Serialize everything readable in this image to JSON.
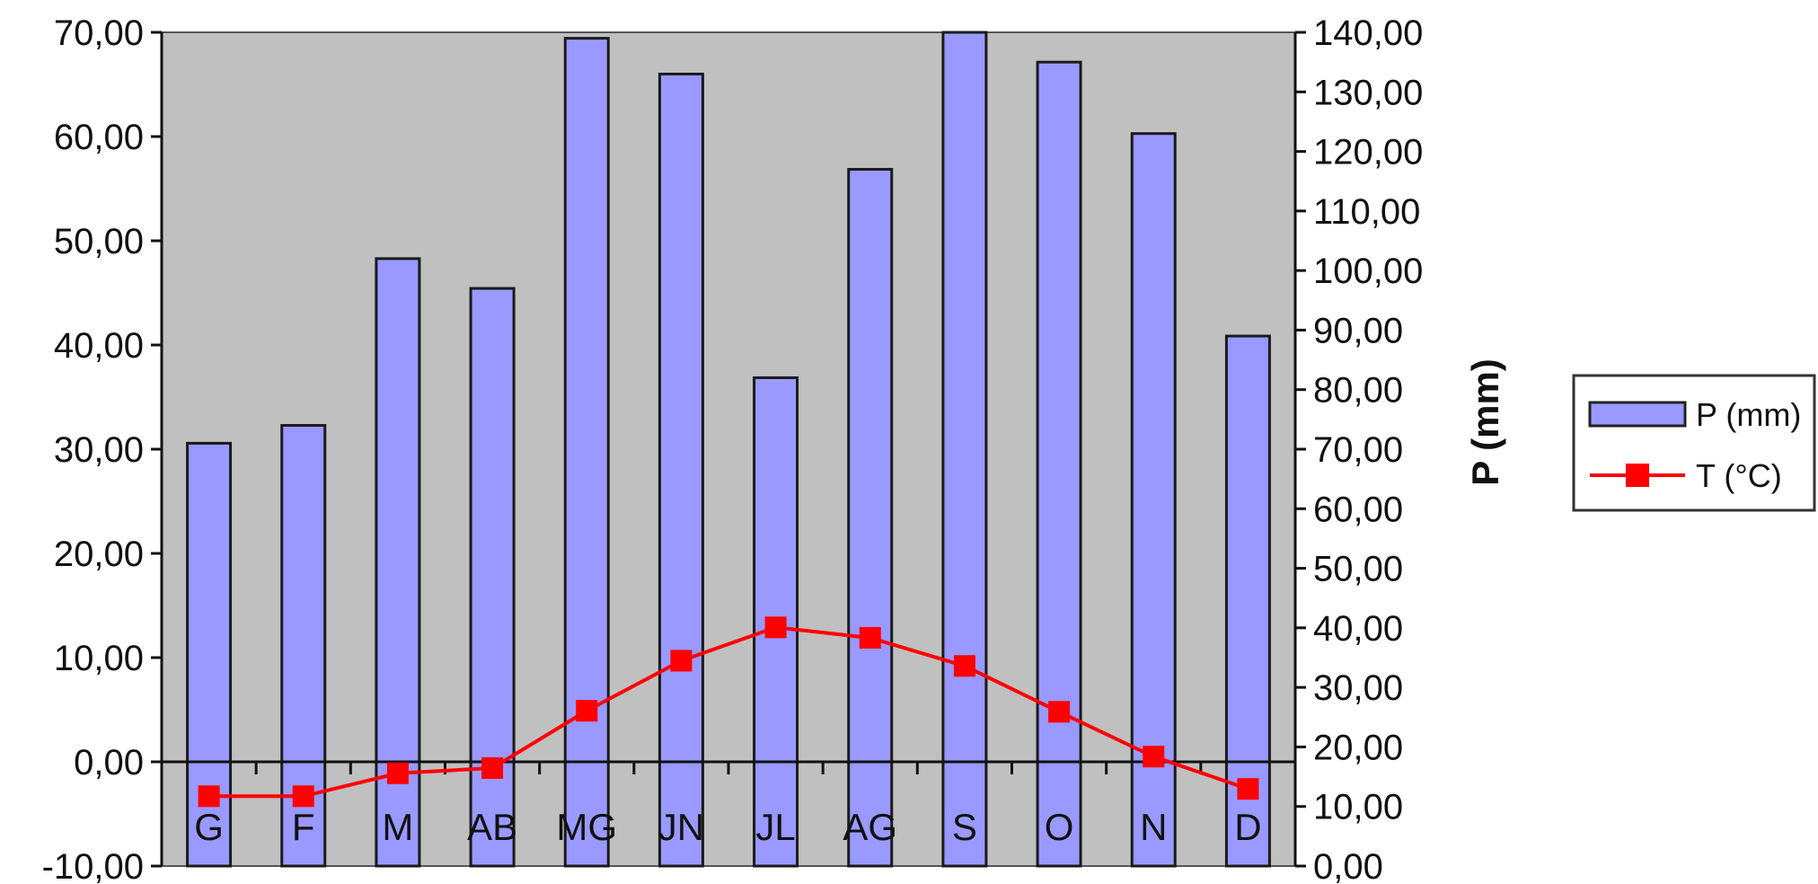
{
  "chart_data": {
    "type": "bar",
    "categories": [
      "G",
      "F",
      "M",
      "AB",
      "MG",
      "JN",
      "JL",
      "AG",
      "S",
      "O",
      "N",
      "D"
    ],
    "series": [
      {
        "name": "P (mm)",
        "type": "bar",
        "axis": "right",
        "color": "#9999ff",
        "values": [
          71,
          74,
          102,
          97,
          139,
          133,
          82,
          117,
          140,
          135,
          123,
          89
        ]
      },
      {
        "name": "T (°C)",
        "type": "line",
        "axis": "left",
        "color": "#ff0000",
        "values": [
          -3.3,
          -3.3,
          -1.1,
          -0.6,
          4.9,
          9.7,
          12.9,
          11.9,
          9.2,
          4.8,
          0.5,
          -2.6
        ]
      }
    ],
    "y_left": {
      "label": "",
      "ylim": [
        -10,
        70
      ],
      "ticks": [
        "-10,00",
        "0,00",
        "10,00",
        "20,00",
        "30,00",
        "40,00",
        "50,00",
        "60,00",
        "70,00"
      ]
    },
    "y_right": {
      "label": "P (mm)",
      "ylim": [
        0,
        140
      ],
      "ticks": [
        "0,00",
        "10,00",
        "20,00",
        "30,00",
        "40,00",
        "50,00",
        "60,00",
        "70,00",
        "80,00",
        "90,00",
        "100,00",
        "110,00",
        "120,00",
        "130,00",
        "140,00"
      ]
    },
    "plot_background": "#c0c0c0",
    "zero_line": true,
    "grid": false,
    "legend": {
      "position": "right",
      "items": [
        {
          "label": "P (mm)",
          "marker": "bar",
          "color": "#9999ff"
        },
        {
          "label": "T (°C)",
          "marker": "line-square",
          "color": "#ff0000"
        }
      ]
    }
  }
}
